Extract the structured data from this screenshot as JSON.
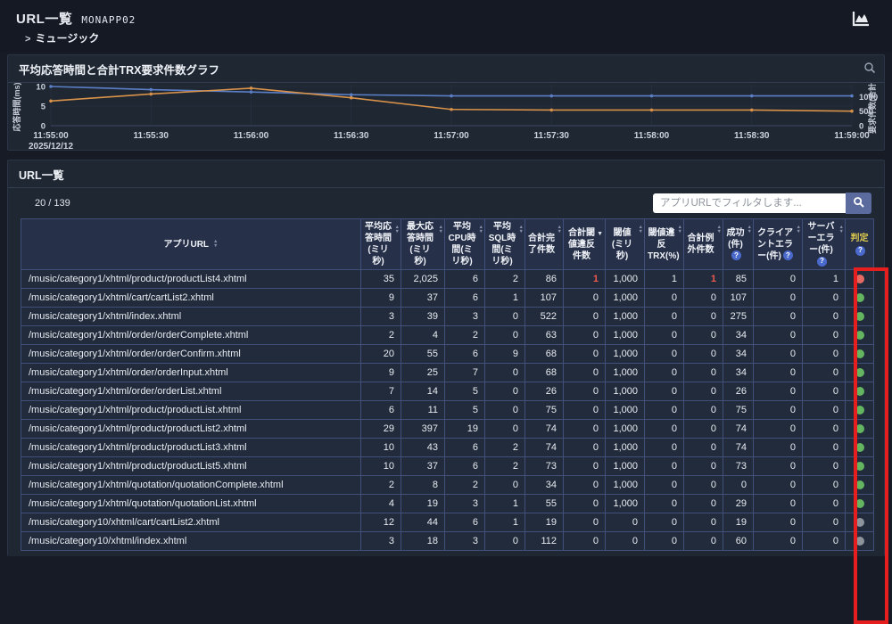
{
  "header": {
    "title": "URL一覧",
    "app_id": "MONAPP02",
    "breadcrumb_arrow": ">",
    "breadcrumb": "ミュージック"
  },
  "icons": {
    "top_right": "area-chart-icon",
    "chart_zoom": "magnifier-zoom-icon",
    "filter_search": "magnifier-icon",
    "column_help": "question-mark-icon",
    "sort": "sort-arrows-icon"
  },
  "chart_panel": {
    "title": "平均応答時間と合計TRX要求件数グラフ"
  },
  "chart_data": {
    "type": "line",
    "title": "平均応答時間と合計TRX要求件数グラフ",
    "x": [
      "11:55:00",
      "11:55:30",
      "11:56:00",
      "11:56:30",
      "11:57:00",
      "11:57:30",
      "11:58:00",
      "11:58:30",
      "11:59:00"
    ],
    "x_date_label": "2025/12/12",
    "left_axis": {
      "label": "応答時間(ms)",
      "ticks": [
        0,
        5,
        10
      ],
      "range": [
        0,
        10
      ]
    },
    "right_axis": {
      "label": "要求件数(合計)",
      "ticks": [
        0,
        500,
        1000
      ],
      "range": [
        0,
        1350
      ]
    },
    "grid": true,
    "legend": "none",
    "series": [
      {
        "name": "平均応答時間(ミリ秒)",
        "axis": "left",
        "color": "#5b7fc7",
        "values": [
          10,
          9.2,
          8.6,
          7.9,
          7.6,
          7.6,
          7.6,
          7.6,
          7.6
        ]
      },
      {
        "name": "合計TRX要求件数",
        "axis": "right",
        "color": "#d9924a",
        "values": [
          850,
          1090,
          1290,
          960,
          560,
          540,
          540,
          540,
          500
        ]
      }
    ]
  },
  "table_panel": {
    "title": "URL一覧",
    "count": "20 / 139",
    "filter_placeholder": "アプリURLでフィルタします...",
    "columns": [
      {
        "label": "アプリURL",
        "sort": "both",
        "help": false
      },
      {
        "label": "平均応答時間(ミリ秒)",
        "sort": "both",
        "help": false
      },
      {
        "label": "最大応答時間(ミリ秒)",
        "sort": "both",
        "help": false
      },
      {
        "label": "平均CPU時間(ミリ秒)",
        "sort": "both",
        "help": false
      },
      {
        "label": "平均SQL時間(ミリ秒)",
        "sort": "both",
        "help": false
      },
      {
        "label": "合計完了件数",
        "sort": "both",
        "help": false
      },
      {
        "label": "合計閾値違反件数",
        "sort": "desc",
        "help": false
      },
      {
        "label": "閾値(ミリ秒)",
        "sort": "both",
        "help": false
      },
      {
        "label": "閾値違反TRX(%)",
        "sort": "both",
        "help": false
      },
      {
        "label": "合計例外件数",
        "sort": "both",
        "help": false
      },
      {
        "label": "成功(件)",
        "sort": "both",
        "help": true
      },
      {
        "label": "クライアントエラー(件)",
        "sort": "both",
        "help": true
      },
      {
        "label": "サーバーエラー(件)",
        "sort": "both",
        "help": true
      },
      {
        "label": "判定",
        "sort": "none",
        "help": true
      }
    ],
    "rows": [
      {
        "url": "/music/category1/xhtml/product/productList4.xhtml",
        "values": [
          "35",
          "2,025",
          "6",
          "2",
          "86",
          "1",
          "1,000",
          "1",
          "1",
          "85",
          "0",
          "1"
        ],
        "status": "red"
      },
      {
        "url": "/music/category1/xhtml/cart/cartList2.xhtml",
        "values": [
          "9",
          "37",
          "6",
          "1",
          "107",
          "0",
          "1,000",
          "0",
          "0",
          "107",
          "0",
          "0"
        ],
        "status": "green"
      },
      {
        "url": "/music/category1/xhtml/index.xhtml",
        "values": [
          "3",
          "39",
          "3",
          "0",
          "522",
          "0",
          "1,000",
          "0",
          "0",
          "275",
          "0",
          "0"
        ],
        "status": "green"
      },
      {
        "url": "/music/category1/xhtml/order/orderComplete.xhtml",
        "values": [
          "2",
          "4",
          "2",
          "0",
          "63",
          "0",
          "1,000",
          "0",
          "0",
          "34",
          "0",
          "0"
        ],
        "status": "green"
      },
      {
        "url": "/music/category1/xhtml/order/orderConfirm.xhtml",
        "values": [
          "20",
          "55",
          "6",
          "9",
          "68",
          "0",
          "1,000",
          "0",
          "0",
          "34",
          "0",
          "0"
        ],
        "status": "green"
      },
      {
        "url": "/music/category1/xhtml/order/orderInput.xhtml",
        "values": [
          "9",
          "25",
          "7",
          "0",
          "68",
          "0",
          "1,000",
          "0",
          "0",
          "34",
          "0",
          "0"
        ],
        "status": "green"
      },
      {
        "url": "/music/category1/xhtml/order/orderList.xhtml",
        "values": [
          "7",
          "14",
          "5",
          "0",
          "26",
          "0",
          "1,000",
          "0",
          "0",
          "26",
          "0",
          "0"
        ],
        "status": "green"
      },
      {
        "url": "/music/category1/xhtml/product/productList.xhtml",
        "values": [
          "6",
          "11",
          "5",
          "0",
          "75",
          "0",
          "1,000",
          "0",
          "0",
          "75",
          "0",
          "0"
        ],
        "status": "green"
      },
      {
        "url": "/music/category1/xhtml/product/productList2.xhtml",
        "values": [
          "29",
          "397",
          "19",
          "0",
          "74",
          "0",
          "1,000",
          "0",
          "0",
          "74",
          "0",
          "0"
        ],
        "status": "green"
      },
      {
        "url": "/music/category1/xhtml/product/productList3.xhtml",
        "values": [
          "10",
          "43",
          "6",
          "2",
          "74",
          "0",
          "1,000",
          "0",
          "0",
          "74",
          "0",
          "0"
        ],
        "status": "green"
      },
      {
        "url": "/music/category1/xhtml/product/productList5.xhtml",
        "values": [
          "10",
          "37",
          "6",
          "2",
          "73",
          "0",
          "1,000",
          "0",
          "0",
          "73",
          "0",
          "0"
        ],
        "status": "green"
      },
      {
        "url": "/music/category1/xhtml/quotation/quotationComplete.xhtml",
        "values": [
          "2",
          "8",
          "2",
          "0",
          "34",
          "0",
          "1,000",
          "0",
          "0",
          "0",
          "0",
          "0"
        ],
        "status": "green"
      },
      {
        "url": "/music/category1/xhtml/quotation/quotationList.xhtml",
        "values": [
          "4",
          "19",
          "3",
          "1",
          "55",
          "0",
          "1,000",
          "0",
          "0",
          "29",
          "0",
          "0"
        ],
        "status": "green"
      },
      {
        "url": "/music/category10/xhtml/cart/cartList2.xhtml",
        "values": [
          "12",
          "44",
          "6",
          "1",
          "19",
          "0",
          "0",
          "0",
          "0",
          "19",
          "0",
          "0"
        ],
        "status": "gray"
      },
      {
        "url": "/music/category10/xhtml/index.xhtml",
        "values": [
          "3",
          "18",
          "3",
          "0",
          "112",
          "0",
          "0",
          "0",
          "0",
          "60",
          "0",
          "0"
        ],
        "status": "gray"
      }
    ]
  },
  "colors": {
    "accent_red_box": "#e61e1e",
    "red_value": "#ef5a50",
    "judge_header_text": "#dcc84e",
    "status": {
      "red": "#e56a62",
      "green": "#63b55f",
      "gray": "#8d939b"
    },
    "series_blue": "#5b7fc7",
    "series_orange": "#d9924a"
  }
}
